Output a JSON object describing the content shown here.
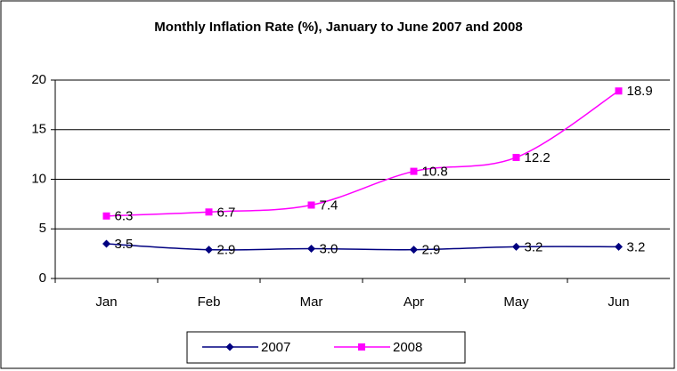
{
  "chart_data": {
    "type": "line",
    "title": "Monthly Inflation Rate (%), January to June 2007 and 2008",
    "categories": [
      "Jan",
      "Feb",
      "Mar",
      "Apr",
      "May",
      "Jun"
    ],
    "series": [
      {
        "name": "2007",
        "color": "#000080",
        "marker": "diamond",
        "values": [
          3.5,
          2.9,
          3.0,
          2.9,
          3.2,
          3.2
        ],
        "value_labels": [
          "3.5",
          "2.9",
          "3.0",
          "2.9",
          "3.2",
          "3.2"
        ]
      },
      {
        "name": "2008",
        "color": "#ff00ff",
        "marker": "square",
        "values": [
          6.3,
          6.7,
          7.4,
          10.8,
          12.2,
          18.9
        ]
      }
    ],
    "ylim": [
      0,
      20
    ],
    "yticks": [
      0,
      5,
      10,
      15,
      20
    ],
    "grid": true,
    "smooth": true,
    "legend": "bottom"
  }
}
